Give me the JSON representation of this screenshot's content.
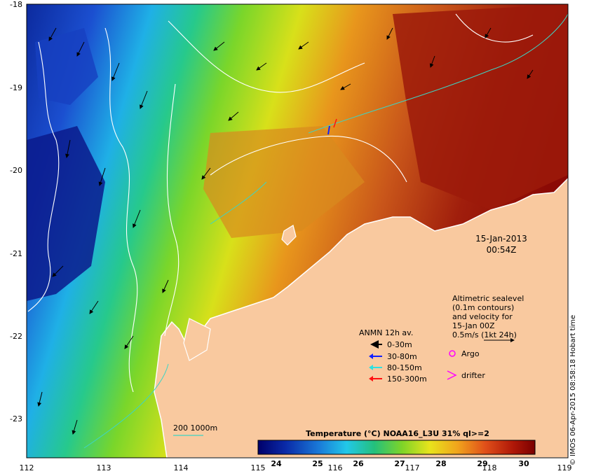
{
  "map": {
    "lon_ticks": [
      "112",
      "113",
      "114",
      "115",
      "116",
      "117",
      "118",
      "119"
    ],
    "lat_ticks": [
      "-18",
      "-19",
      "-20",
      "-21",
      "-22",
      "-23"
    ],
    "colors": {
      "land": "#f9c99f",
      "sea_deep_cold": "#0a1a8c",
      "sea_warm": "#8b0a05",
      "contour": "#ffffff",
      "isobath": "#3dd5c4"
    }
  },
  "timestamp": {
    "date": "15-Jan-2013",
    "time": "00:54Z"
  },
  "altimetry_note": {
    "lines": [
      "Altimetric sealevel",
      "(0.1m contours)",
      "and velocity for",
      "15-Jan 00Z",
      "0.5m/s (1kt 24h)"
    ]
  },
  "anmn_legend": {
    "title": "ANMN 12h av.",
    "items": [
      {
        "label": "0-30m",
        "color": "#000000"
      },
      {
        "label": "30-80m",
        "color": "#1020ff"
      },
      {
        "label": "80-150m",
        "color": "#30e0e0"
      },
      {
        "label": "150-300m",
        "color": "#ff1010"
      }
    ]
  },
  "markers": {
    "argo": {
      "label": "Argo",
      "color": "#ff00ff"
    },
    "drifter": {
      "label": "drifter",
      "color": "#ff00ff"
    }
  },
  "isobath_legend": {
    "label": "200  1000m"
  },
  "colorbar": {
    "title": "Temperature (°C) NOAA16_L3U 31% ql>=2",
    "ticks": [
      "24",
      "25",
      "26",
      "27",
      "28",
      "29",
      "30"
    ]
  },
  "credit": "© IMOS 06-Apr-2015 08:58:18 Hobart time"
}
